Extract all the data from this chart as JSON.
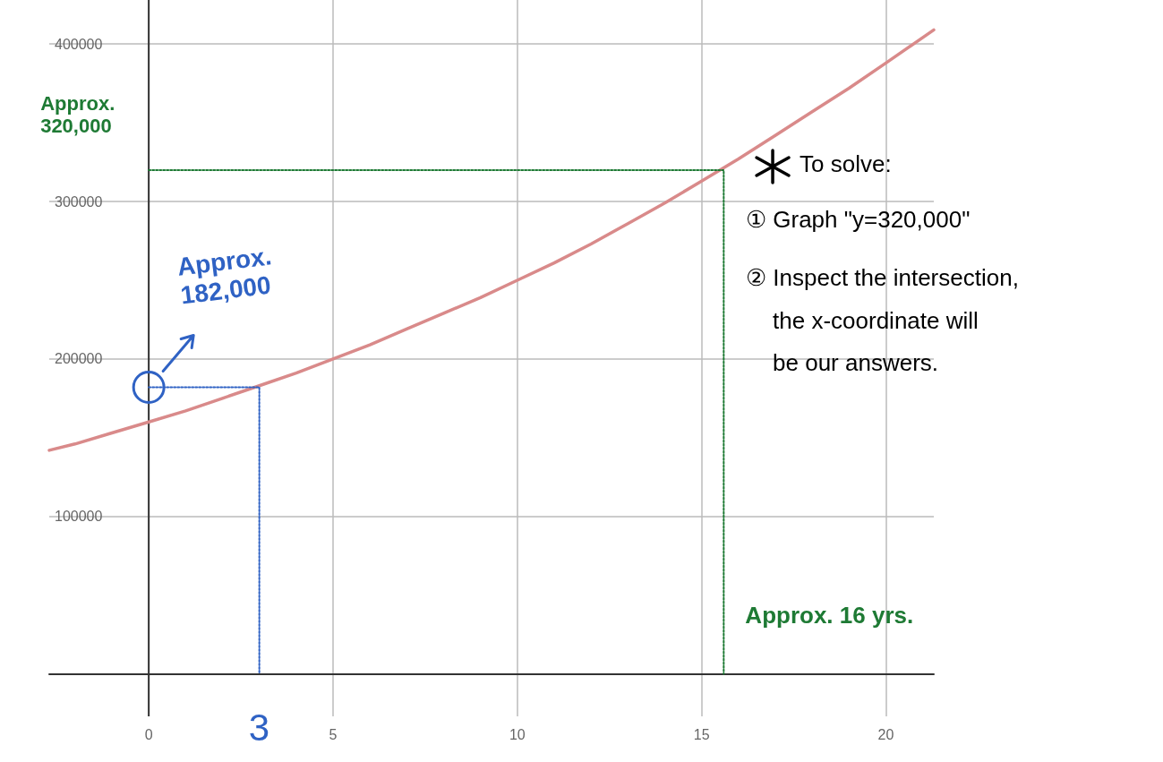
{
  "chart_data": {
    "type": "line",
    "xlim": [
      -2.7,
      21.3
    ],
    "ylim": [
      -27000,
      428000
    ],
    "xticks": [
      0,
      5,
      10,
      15,
      20
    ],
    "yticks": [
      100000,
      200000,
      300000,
      400000
    ],
    "grid": true,
    "marker": "none",
    "series": [
      {
        "color": "#d98a8a",
        "line_style": "solid",
        "x": [
          -2.7,
          -2,
          -1,
          0,
          1,
          2,
          3,
          4,
          5,
          6,
          7,
          8,
          9,
          10,
          11,
          12,
          13,
          14,
          15,
          16,
          17,
          18,
          19,
          20,
          21.3
        ],
        "values": [
          142000,
          146000,
          153000,
          160000,
          167000,
          175000,
          183000,
          191000,
          200000,
          209000,
          219000,
          229000,
          239000,
          250000,
          261000,
          273000,
          286000,
          299000,
          313000,
          327000,
          342000,
          357000,
          372000,
          388000,
          409000
        ]
      },
      {
        "color": "#1e7a34",
        "line_style": "dotted",
        "x": [
          0,
          15.6,
          15.6
        ],
        "values": [
          320000,
          320000,
          0
        ]
      },
      {
        "color": "#2f62c4",
        "line_style": "dotted",
        "x": [
          0,
          3,
          3
        ],
        "values": [
          182000,
          182000,
          0
        ]
      }
    ],
    "annotations": [
      {
        "text": "Approx. 320,000",
        "x": 0,
        "y": 320000
      },
      "Approx. 182,000",
      {
        "text": "Approx. 16 yrs.",
        "x": 15.6,
        "y": 0
      },
      {
        "text": "3",
        "x": 3,
        "y": 0
      },
      "To solve:",
      "① Graph \"y=320,000\"",
      "② Inspect the intersection,",
      "the x-coordinate will",
      "be our answers."
    ]
  }
}
